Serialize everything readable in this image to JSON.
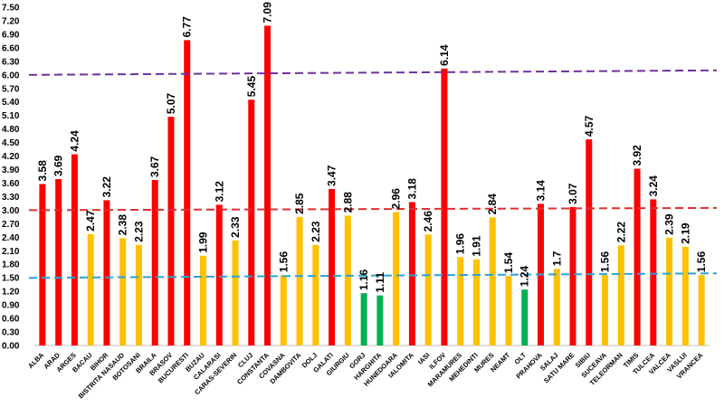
{
  "chart_data": {
    "type": "bar",
    "title": "",
    "xlabel": "",
    "ylabel": "",
    "ylim": [
      0,
      7.5
    ],
    "yticks": [
      "0.00",
      "0.30",
      "0.60",
      "0.90",
      "1.20",
      "1.50",
      "1.80",
      "2.10",
      "2.40",
      "2.70",
      "3.00",
      "3.30",
      "3.60",
      "3.90",
      "4.20",
      "4.50",
      "4.80",
      "5.10",
      "5.40",
      "5.70",
      "6.00",
      "6.30",
      "6.60",
      "6.90",
      "7.20",
      "7.50"
    ],
    "grid": false,
    "legend": "none",
    "categories": [
      "ALBA",
      "ARAD",
      "ARGES",
      "BACAU",
      "BIHOR",
      "BISTRITA NASAUD",
      "BOTOSANI",
      "BRAILA",
      "BRASOV",
      "BUCURESTI",
      "BUZAU",
      "CALARASI",
      "CARAS-SEVERIN",
      "CLUJ",
      "CONSTANTA",
      "COVASNA",
      "DAMBOVITA",
      "DOLJ",
      "GALATI",
      "GIURGIU",
      "GORJ",
      "HARGHITA",
      "HUNEDOARA",
      "IALOMITA",
      "IASI",
      "ILFOV",
      "MARAMURES",
      "MEHEDINTI",
      "MURES",
      "NEAMT",
      "OLT",
      "PRAHOVA",
      "SALAJ",
      "SATU MARE",
      "SIBIU",
      "SUCEAVA",
      "TELEORMAN",
      "TIMIS",
      "TULCEA",
      "VALCEA",
      "VASLUI",
      "VRANCEA"
    ],
    "values": [
      3.58,
      3.69,
      4.24,
      2.47,
      3.22,
      2.38,
      2.23,
      3.67,
      5.07,
      6.77,
      1.99,
      3.12,
      2.33,
      5.45,
      7.09,
      1.56,
      2.85,
      2.23,
      3.47,
      2.88,
      1.16,
      1.11,
      2.96,
      3.18,
      2.46,
      6.14,
      1.96,
      1.91,
      2.84,
      1.54,
      1.24,
      3.14,
      1.7,
      3.07,
      4.57,
      1.56,
      2.22,
      3.92,
      3.24,
      2.39,
      2.19,
      1.56
    ],
    "data_labels": [
      "3.58",
      "3.69",
      "4.24",
      "2.47",
      "3.22",
      "2.38",
      "2.23",
      "3.67",
      "5.07",
      "6.77",
      "1.99",
      "3.12",
      "2.33",
      "5.45",
      "7.09",
      "1.56",
      "2.85",
      "2.23",
      "3.47",
      "2.88",
      "1.16",
      "1.11",
      "2.96",
      "3.18",
      "2.46",
      "6.14",
      "1.96",
      "1.91",
      "2.84",
      "1.54",
      "1.24",
      "3.14",
      "1.7",
      "3.07",
      "4.57",
      "1.56",
      "2.22",
      "3.92",
      "3.24",
      "2.39",
      "2.19",
      "1.56"
    ],
    "bar_colors": [
      "red",
      "red",
      "red",
      "yellow",
      "red",
      "yellow",
      "yellow",
      "red",
      "red",
      "red",
      "yellow",
      "red",
      "yellow",
      "red",
      "red",
      "yellow",
      "yellow",
      "yellow",
      "red",
      "yellow",
      "green",
      "green",
      "yellow",
      "red",
      "yellow",
      "red",
      "yellow",
      "yellow",
      "yellow",
      "yellow",
      "green",
      "red",
      "yellow",
      "red",
      "red",
      "yellow",
      "yellow",
      "red",
      "red",
      "yellow",
      "yellow",
      "yellow"
    ],
    "reference_lines": [
      {
        "y_start": 6.0,
        "y_end": 6.1,
        "color": "#7030a0"
      },
      {
        "y_start": 3.0,
        "y_end": 3.05,
        "color": "#e03030"
      },
      {
        "y_start": 1.5,
        "y_end": 1.6,
        "color": "#29a3d6"
      }
    ]
  },
  "colors": {
    "red": "#ff0000",
    "yellow": "#ffc000",
    "green": "#00b050"
  }
}
